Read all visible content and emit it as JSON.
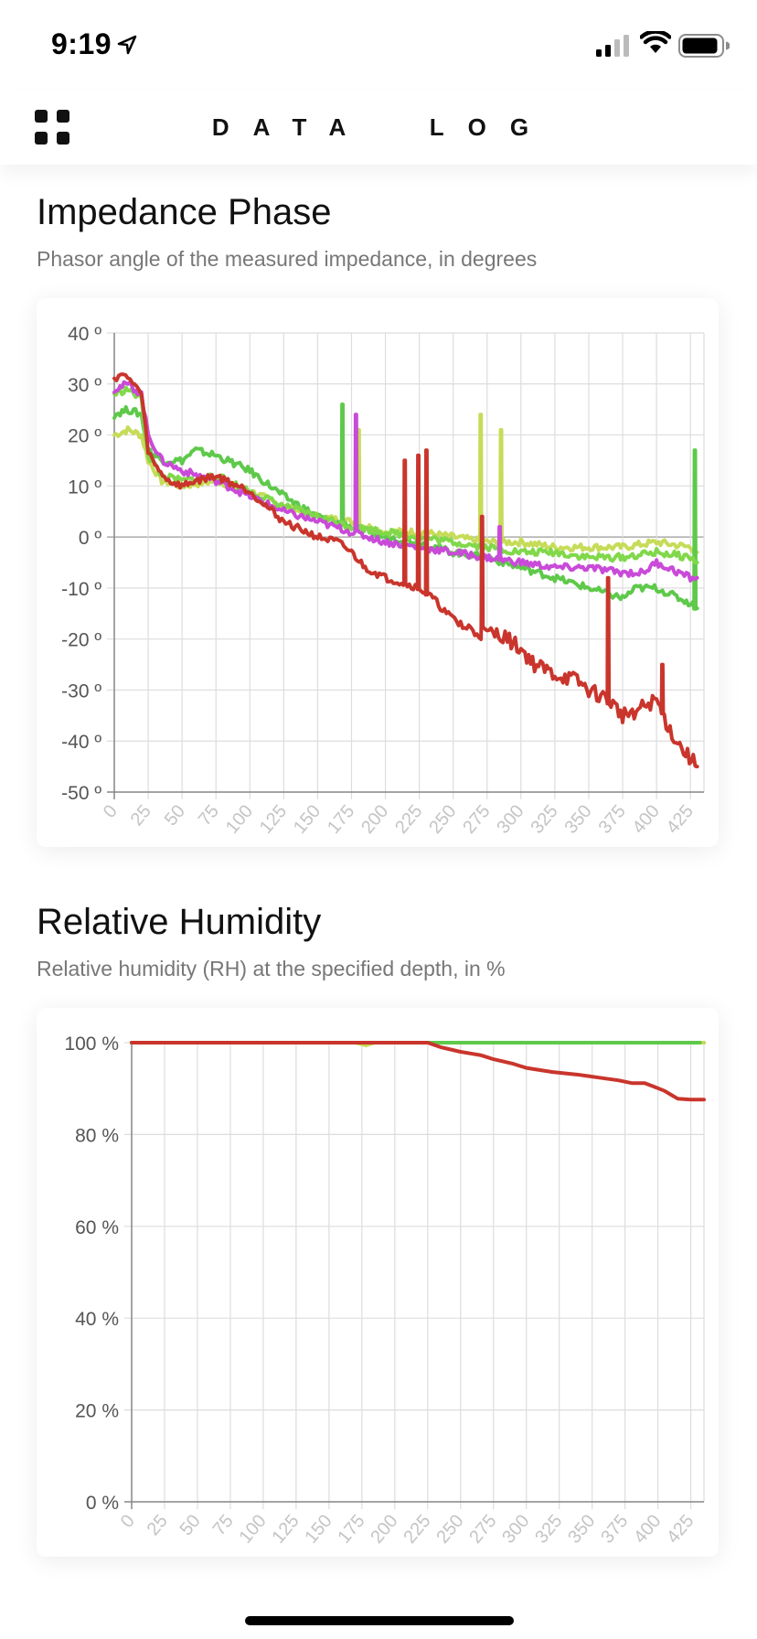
{
  "status_bar": {
    "time": "9:19"
  },
  "nav": {
    "title": "DATA  LOG"
  },
  "sections": [
    {
      "title": "Impedance Phase",
      "subtitle": "Phasor angle of the measured impedance, in degrees"
    },
    {
      "title": "Relative Humidity",
      "subtitle": "Relative humidity (RH) at the specified depth, in %"
    }
  ],
  "colors": {
    "red": "#c9352c",
    "magenta": "#c94ad8",
    "green": "#5ec94a",
    "yellow_green": "#c6dc58",
    "light_green": "#80d84a",
    "grid": "#dddddd",
    "axis": "#888888"
  },
  "chart_data": [
    {
      "type": "line",
      "ylim": [
        -50,
        40
      ],
      "xlim": [
        0,
        435
      ],
      "yticks": [
        40,
        30,
        20,
        10,
        0,
        -10,
        -20,
        -30,
        -40,
        -50
      ],
      "ytick_labels": [
        "40 º",
        "30 º",
        "20 º",
        "10 º",
        "0 º",
        "-10 º",
        "-20 º",
        "-30 º",
        "-40 º",
        "-50 º"
      ],
      "xtick_labels": [
        "0",
        "25",
        "50",
        "75",
        "100",
        "125",
        "150",
        "175",
        "200",
        "225",
        "250",
        "275",
        "300",
        "325",
        "350",
        "375",
        "400",
        "425"
      ],
      "grid": true,
      "series": [
        {
          "color": "#c6dc58",
          "x": [
            0,
            10,
            20,
            25,
            35,
            50,
            75,
            100,
            125,
            150,
            175,
            200,
            225,
            250,
            275,
            300,
            325,
            350,
            375,
            400,
            425,
            430
          ],
          "y": [
            20,
            21,
            20,
            15,
            11,
            10,
            11,
            9,
            6,
            4,
            3,
            1,
            1,
            0,
            -1,
            -1,
            -2,
            -2,
            -2,
            -1,
            -2,
            -3
          ],
          "spikes": [
            [
              180,
              21
            ],
            [
              270,
              24
            ],
            [
              285,
              21
            ]
          ]
        },
        {
          "color": "#5ec94a",
          "x": [
            0,
            10,
            20,
            25,
            35,
            50,
            60,
            75,
            100,
            125,
            150,
            175,
            200,
            225,
            250,
            275,
            300,
            325,
            350,
            375,
            385,
            400,
            425,
            430
          ],
          "y": [
            24,
            25,
            24,
            17,
            15,
            15,
            17,
            16,
            13,
            8,
            4,
            2,
            0,
            -1,
            -3,
            -4,
            -6,
            -8,
            -10,
            -12,
            -10,
            -10,
            -13,
            -14
          ],
          "spikes": [
            [
              168,
              26
            ],
            [
              428,
              17
            ]
          ]
        },
        {
          "color": "#80d84a",
          "x": [
            0,
            10,
            20,
            25,
            35,
            50,
            75,
            100,
            125,
            150,
            175,
            200,
            225,
            250,
            275,
            300,
            325,
            350,
            375,
            400,
            425,
            430
          ],
          "y": [
            28,
            29,
            27,
            16,
            12,
            11,
            12,
            9,
            6,
            4,
            2,
            1,
            0,
            -1,
            -2,
            -3,
            -3,
            -4,
            -4,
            -3,
            -4,
            -5
          ],
          "spikes": []
        },
        {
          "color": "#c94ad8",
          "x": [
            0,
            10,
            20,
            25,
            35,
            50,
            75,
            100,
            125,
            150,
            175,
            200,
            225,
            250,
            275,
            300,
            325,
            350,
            375,
            390,
            400,
            425,
            430
          ],
          "y": [
            29,
            30,
            28,
            20,
            15,
            13,
            11,
            8,
            5,
            3,
            1,
            -1,
            -2,
            -3,
            -4,
            -5,
            -6,
            -6,
            -7,
            -7,
            -5,
            -8,
            -8
          ],
          "spikes": [
            [
              178,
              24
            ],
            [
              284,
              2
            ]
          ]
        },
        {
          "color": "#c9352c",
          "x": [
            0,
            5,
            10,
            15,
            20,
            25,
            30,
            40,
            50,
            60,
            75,
            100,
            125,
            150,
            165,
            175,
            185,
            200,
            225,
            235,
            245,
            260,
            275,
            285,
            290,
            300,
            310,
            325,
            340,
            350,
            365,
            375,
            385,
            400,
            410,
            420,
            430
          ],
          "y": [
            31,
            32,
            31,
            30,
            28,
            17,
            14,
            11,
            10,
            11,
            12,
            9,
            3,
            0,
            -1,
            -3,
            -6,
            -8,
            -10,
            -12,
            -15,
            -18,
            -19,
            -19,
            -20,
            -22,
            -25,
            -27,
            -28,
            -30,
            -32,
            -35,
            -34,
            -32,
            -38,
            -42,
            -45
          ],
          "spikes": [
            [
              214,
              15
            ],
            [
              224,
              16
            ],
            [
              230,
              17
            ],
            [
              271,
              4
            ],
            [
              364,
              -8
            ],
            [
              404,
              -25
            ]
          ]
        }
      ]
    },
    {
      "type": "line",
      "ylim": [
        0,
        100
      ],
      "xlim": [
        0,
        435
      ],
      "yticks": [
        100,
        80,
        60,
        40,
        20,
        0
      ],
      "ytick_labels": [
        "100 %",
        "80 %",
        "60 %",
        "40 %",
        "20 %",
        "0 %"
      ],
      "xtick_labels": [
        "0",
        "25",
        "50",
        "75",
        "100",
        "125",
        "150",
        "175",
        "200",
        "225",
        "250",
        "275",
        "300",
        "325",
        "350",
        "375",
        "400",
        "425"
      ],
      "grid": true,
      "series": [
        {
          "color": "#c94ad8",
          "x": [
            0,
            435
          ],
          "y": [
            100,
            100
          ],
          "spikes": []
        },
        {
          "color": "#c6dc58",
          "x": [
            0,
            170,
            178,
            185,
            435
          ],
          "y": [
            100,
            100,
            99.4,
            100,
            100
          ],
          "spikes": []
        },
        {
          "color": "#5ec94a",
          "x": [
            0,
            432
          ],
          "y": [
            100,
            100
          ],
          "spikes": []
        },
        {
          "color": "#c9352c",
          "x": [
            0,
            225,
            235,
            250,
            265,
            275,
            290,
            300,
            320,
            340,
            355,
            370,
            380,
            390,
            405,
            415,
            425,
            435
          ],
          "y": [
            100,
            100,
            99,
            98,
            97.3,
            96.4,
            95.4,
            94.5,
            93.6,
            93,
            92.4,
            91.8,
            91.2,
            91.2,
            89.5,
            87.8,
            87.6,
            87.6
          ],
          "spikes": []
        }
      ]
    }
  ]
}
